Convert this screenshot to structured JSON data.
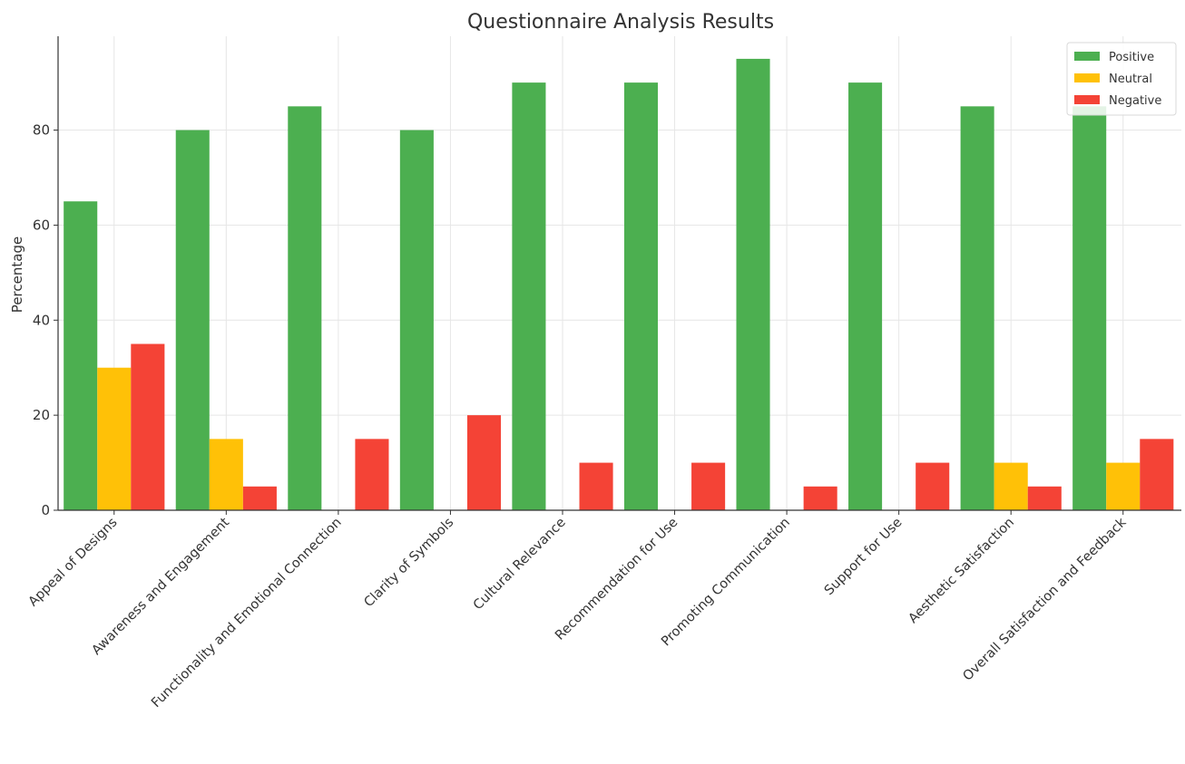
{
  "chart_data": {
    "type": "bar",
    "title": "Questionnaire Analysis Results",
    "xlabel": "",
    "ylabel": "Percentage",
    "ylim": [
      0,
      100
    ],
    "yticks": [
      0,
      20,
      40,
      60,
      80
    ],
    "grid": true,
    "legend_position": "top-right",
    "categories": [
      "Appeal of Designs",
      "Awareness and Engagement",
      "Functionality and Emotional Connection",
      "Clarity of Symbols",
      "Cultural Relevance",
      "Recommendation for Use",
      "Promoting Communication",
      "Support for Use",
      "Aesthetic Satisfaction",
      "Overall Satisfaction and Feedback"
    ],
    "series": [
      {
        "name": "Positive",
        "color": "#4caf50",
        "values": [
          65,
          80,
          85,
          80,
          90,
          90,
          95,
          90,
          85,
          85
        ]
      },
      {
        "name": "Neutral",
        "color": "#ffc107",
        "values": [
          30,
          15,
          0,
          0,
          0,
          0,
          0,
          0,
          10,
          10
        ]
      },
      {
        "name": "Negative",
        "color": "#f44336",
        "values": [
          35,
          5,
          15,
          20,
          10,
          10,
          5,
          10,
          5,
          15
        ]
      }
    ]
  }
}
